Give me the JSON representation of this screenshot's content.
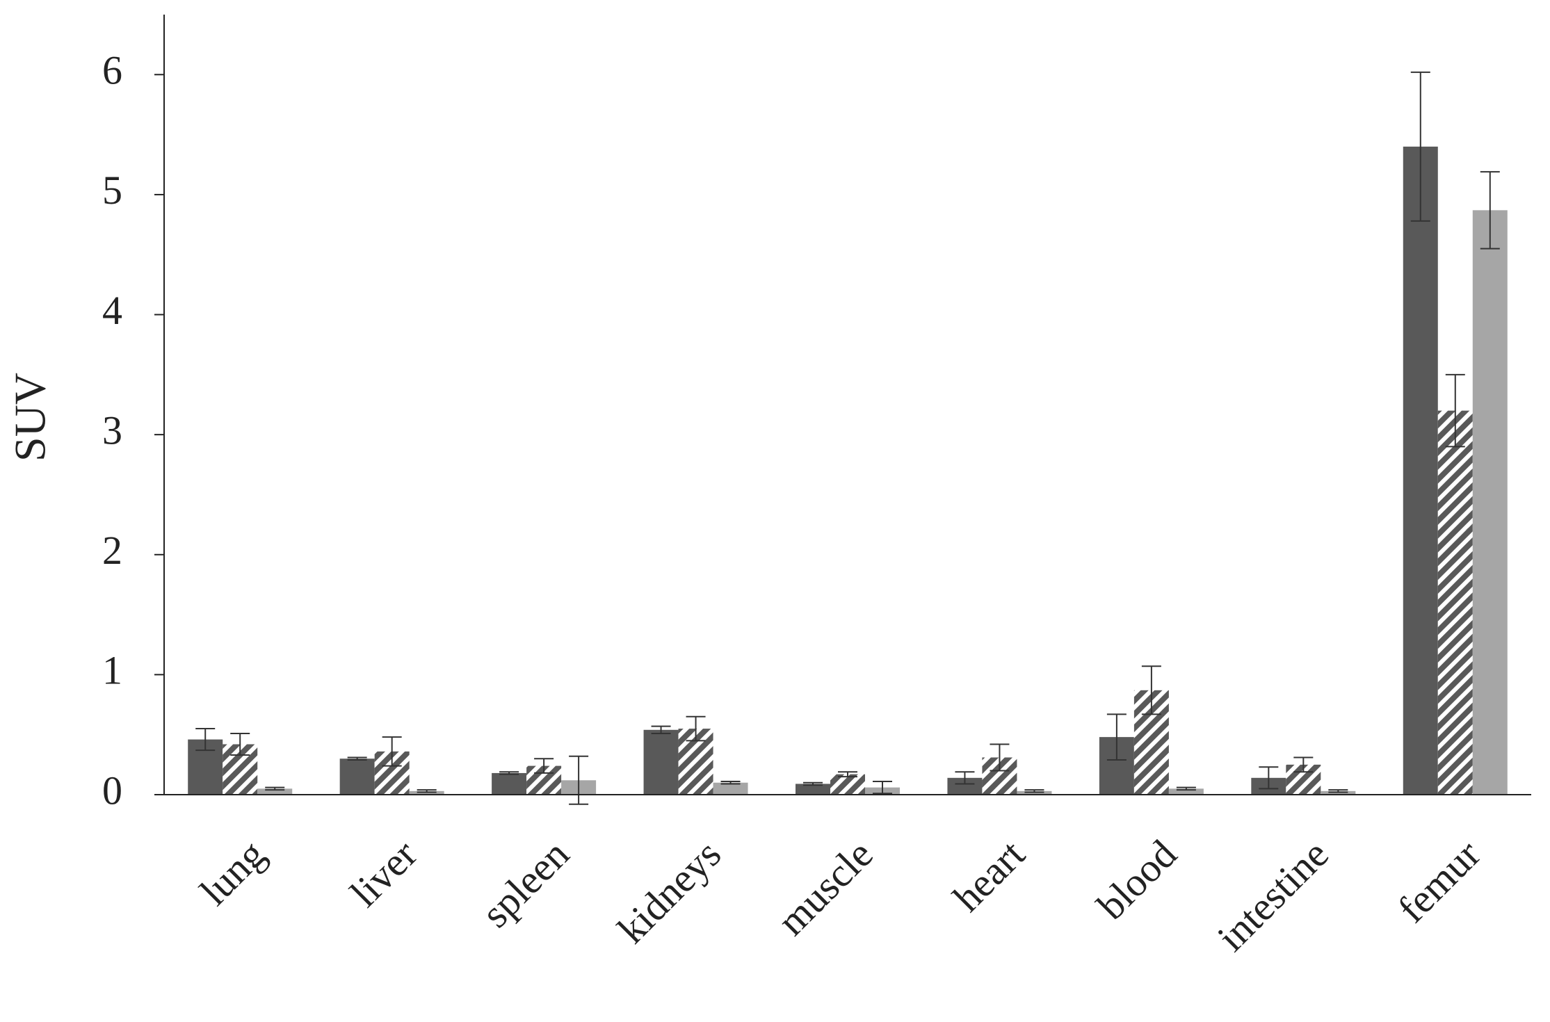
{
  "chart_data": {
    "type": "bar",
    "ylabel": "SUV",
    "categories": [
      "lung",
      "liver",
      "spleen",
      "kidneys",
      "muscle",
      "heart",
      "blood",
      "intestine",
      "femur"
    ],
    "series": [
      {
        "color": "#595959",
        "hatch": false,
        "values": [
          0.46,
          0.3,
          0.18,
          0.54,
          0.09,
          0.14,
          0.48,
          0.14,
          5.4
        ],
        "errors": [
          0.09,
          0.01,
          0.01,
          0.03,
          0.01,
          0.05,
          0.19,
          0.09,
          0.62
        ]
      },
      {
        "color": "#595959",
        "hatch": true,
        "values": [
          0.42,
          0.36,
          0.24,
          0.55,
          0.17,
          0.31,
          0.87,
          0.25,
          3.2
        ],
        "errors": [
          0.09,
          0.12,
          0.06,
          0.1,
          0.02,
          0.11,
          0.2,
          0.06,
          0.3
        ]
      },
      {
        "color": "#a6a6a6",
        "hatch": false,
        "values": [
          0.05,
          0.03,
          0.12,
          0.1,
          0.06,
          0.03,
          0.05,
          0.03,
          4.87
        ],
        "errors": [
          0.01,
          0.01,
          0.2,
          0.01,
          0.05,
          0.01,
          0.01,
          0.01,
          0.32
        ]
      }
    ],
    "ylim": [
      0,
      6.5
    ],
    "yticks": [
      0,
      1,
      2,
      3,
      4,
      5,
      6
    ],
    "grid": false
  }
}
